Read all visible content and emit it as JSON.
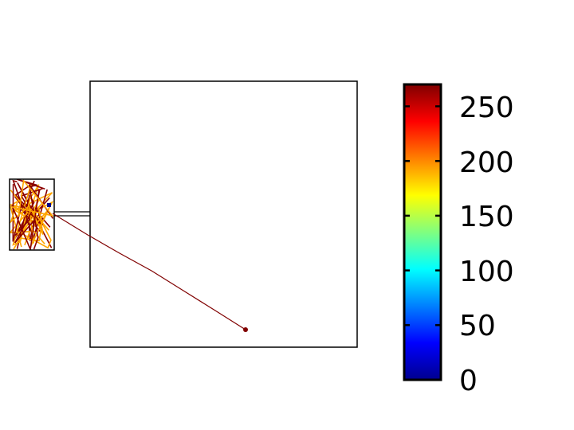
{
  "chart_data": {
    "type": "line",
    "title": "",
    "xlabel": "",
    "ylabel": "",
    "grid": false,
    "main_axes": {
      "box": true,
      "tick_labels": false,
      "series": [
        {
          "color": "#800000",
          "description_points": "single trajectory running from the inset's right edge down to an end marker"
        }
      ]
    },
    "inset": {
      "box": true,
      "series_colors": [
        "#8b0000",
        "#ffa500",
        "#00008b"
      ]
    },
    "colorbar": {
      "colormap": "jet",
      "clim": [
        0,
        270
      ],
      "ticks": [
        0,
        50,
        100,
        150,
        200,
        250
      ],
      "tick_labels": [
        "0",
        "50",
        "100",
        "150",
        "200",
        "250"
      ],
      "placement": "right"
    }
  }
}
